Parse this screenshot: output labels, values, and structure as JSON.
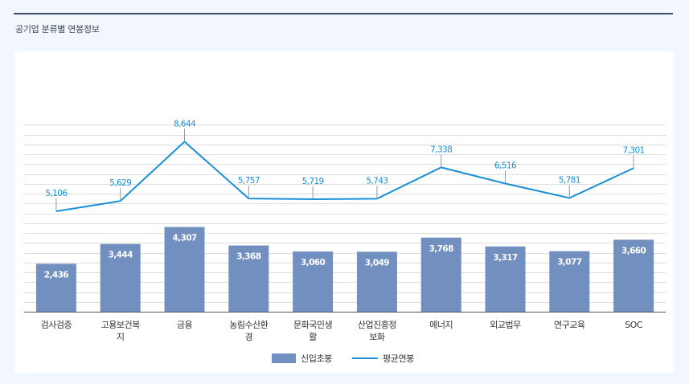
{
  "page": {
    "section_title": "공기업 분류별 연봉정보"
  },
  "colors": {
    "bar": "#7290bf",
    "line": "#1a8fd8",
    "grid": "#dddddd",
    "axis": "#555555"
  },
  "chart_data": {
    "type": "bar",
    "title": "",
    "categories": [
      [
        "검사검증"
      ],
      [
        "고용보건복",
        "지"
      ],
      [
        "금융"
      ],
      [
        "농림수산환",
        "경"
      ],
      [
        "문화국민생",
        "활"
      ],
      [
        "산업진흥정",
        "보화"
      ],
      [
        "에너지"
      ],
      [
        "외교법무"
      ],
      [
        "연구교육"
      ],
      [
        "SOC"
      ]
    ],
    "series": [
      {
        "name": "신입초봉",
        "kind": "bar",
        "values": [
          2436,
          3444,
          4307,
          3368,
          3060,
          3049,
          3768,
          3317,
          3077,
          3660
        ],
        "labels": [
          "2,436",
          "3,444",
          "4,307",
          "3,368",
          "3,060",
          "3,049",
          "3,768",
          "3,317",
          "3,077",
          "3,660"
        ]
      },
      {
        "name": "평균연봉",
        "kind": "line",
        "values": [
          5106,
          5629,
          8644,
          5757,
          5719,
          5743,
          7338,
          6516,
          5781,
          7301
        ],
        "labels": [
          "5,106",
          "5,629",
          "8,644",
          "5,757",
          "5,719",
          "5,743",
          "7,338",
          "6,516",
          "5,781",
          "7,301"
        ]
      }
    ],
    "ylim": [
      0,
      10000
    ],
    "grid": true,
    "legend": "bottom"
  }
}
